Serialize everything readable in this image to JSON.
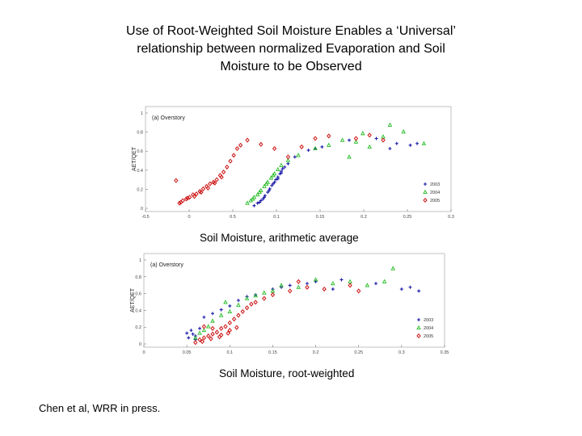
{
  "title_lines": [
    "Use of Root-Weighted Soil Moisture Enables a ‘Universal’",
    "relationship between normalized Evaporation and Soil",
    "Moisture to be Observed"
  ],
  "captions": {
    "top": "Soil Moisture, arithmetic average",
    "bottom": "Soil Moisture, root-weighted"
  },
  "credit": "Chen et al, WRR in press.",
  "colors": {
    "blue": "#1a1aa8",
    "green": "#22bb22",
    "red": "#cc1111"
  },
  "chart_data": [
    {
      "type": "scatter",
      "title": "(a) Overstory",
      "xlabel": "",
      "ylabel": "AET/QET",
      "xlim": [
        -0.05,
        0.4
      ],
      "ylim": [
        -0.05,
        1.2
      ],
      "x_ticks": [
        "-0.5",
        "0",
        "0.5",
        "0.1",
        "0.15",
        "0.2",
        "0.25",
        "0.3"
      ],
      "y_ticks": [
        "1",
        "0.8",
        "0.6",
        "0.4",
        "0.2",
        "0"
      ],
      "legend_position": "bottom-right",
      "legend": [
        "2003",
        "2004",
        "2005"
      ],
      "series": [
        {
          "name": "2003",
          "color": "blue",
          "marker": "plus",
          "points": [
            [
              0.11,
              0.02
            ],
            [
              0.115,
              0.05
            ],
            [
              0.12,
              0.08
            ],
            [
              0.123,
              0.1
            ],
            [
              0.126,
              0.14
            ],
            [
              0.13,
              0.18
            ],
            [
              0.133,
              0.22
            ],
            [
              0.136,
              0.26
            ],
            [
              0.14,
              0.3
            ],
            [
              0.142,
              0.33
            ],
            [
              0.145,
              0.36
            ],
            [
              0.148,
              0.4
            ],
            [
              0.15,
              0.43
            ],
            [
              0.152,
              0.46
            ],
            [
              0.155,
              0.48
            ],
            [
              0.118,
              0.06
            ],
            [
              0.125,
              0.12
            ],
            [
              0.132,
              0.2
            ],
            [
              0.138,
              0.28
            ],
            [
              0.145,
              0.34
            ],
            [
              0.15,
              0.41
            ],
            [
              0.16,
              0.52
            ],
            [
              0.17,
              0.6
            ],
            [
              0.19,
              0.68
            ],
            [
              0.21,
              0.72
            ],
            [
              0.25,
              0.8
            ],
            [
              0.29,
              0.82
            ],
            [
              0.32,
              0.76
            ],
            [
              0.34,
              0.74
            ],
            [
              0.35,
              0.76
            ],
            [
              0.31,
              0.7
            ],
            [
              0.2,
              0.7
            ]
          ]
        },
        {
          "name": "2004",
          "color": "green",
          "marker": "triangle",
          "points": [
            [
              0.1,
              0.05
            ],
            [
              0.105,
              0.08
            ],
            [
              0.11,
              0.12
            ],
            [
              0.115,
              0.15
            ],
            [
              0.12,
              0.2
            ],
            [
              0.125,
              0.25
            ],
            [
              0.13,
              0.3
            ],
            [
              0.135,
              0.35
            ],
            [
              0.14,
              0.4
            ],
            [
              0.145,
              0.45
            ],
            [
              0.108,
              0.1
            ],
            [
              0.118,
              0.18
            ],
            [
              0.128,
              0.28
            ],
            [
              0.138,
              0.38
            ],
            [
              0.15,
              0.5
            ],
            [
              0.16,
              0.56
            ],
            [
              0.175,
              0.62
            ],
            [
              0.2,
              0.7
            ],
            [
              0.22,
              0.74
            ],
            [
              0.24,
              0.8
            ],
            [
              0.26,
              0.78
            ],
            [
              0.28,
              0.72
            ],
            [
              0.3,
              0.84
            ],
            [
              0.31,
              0.98
            ],
            [
              0.33,
              0.9
            ],
            [
              0.36,
              0.76
            ],
            [
              0.25,
              0.6
            ],
            [
              0.27,
              0.88
            ]
          ]
        },
        {
          "name": "2005",
          "color": "red",
          "marker": "diamond",
          "points": [
            [
              0.0,
              0.05
            ],
            [
              0.005,
              0.08
            ],
            [
              0.01,
              0.1
            ],
            [
              0.015,
              0.12
            ],
            [
              0.02,
              0.15
            ],
            [
              0.025,
              0.16
            ],
            [
              0.03,
              0.19
            ],
            [
              0.035,
              0.22
            ],
            [
              0.04,
              0.25
            ],
            [
              0.045,
              0.28
            ],
            [
              0.05,
              0.3
            ],
            [
              0.055,
              0.33
            ],
            [
              0.06,
              0.38
            ],
            [
              0.065,
              0.42
            ],
            [
              0.07,
              0.48
            ],
            [
              0.075,
              0.55
            ],
            [
              0.08,
              0.62
            ],
            [
              0.085,
              0.7
            ],
            [
              0.09,
              0.74
            ],
            [
              0.1,
              0.8
            ],
            [
              -0.005,
              0.32
            ],
            [
              0.002,
              0.06
            ],
            [
              0.012,
              0.11
            ],
            [
              0.022,
              0.13
            ],
            [
              0.032,
              0.18
            ],
            [
              0.042,
              0.23
            ],
            [
              0.052,
              0.29
            ],
            [
              0.062,
              0.36
            ],
            [
              0.12,
              0.75
            ],
            [
              0.14,
              0.7
            ],
            [
              0.18,
              0.72
            ],
            [
              0.2,
              0.82
            ],
            [
              0.22,
              0.85
            ],
            [
              0.26,
              0.82
            ],
            [
              0.28,
              0.86
            ],
            [
              0.3,
              0.8
            ],
            [
              0.16,
              0.6
            ]
          ]
        }
      ]
    },
    {
      "type": "scatter",
      "title": "(a) Overstory",
      "xlabel": "",
      "ylabel": "AET/QET",
      "xlim": [
        0,
        0.35
      ],
      "ylim": [
        0,
        1.0
      ],
      "x_ticks": [
        "0",
        "0.05",
        "0.1",
        "0.15",
        "0.2",
        "0.25",
        "0.3",
        "0.35"
      ],
      "y_ticks": [
        "0",
        "0.2",
        "0.4",
        "0.6",
        "0.8",
        "1"
      ],
      "legend_position": "bottom-right",
      "legend": [
        "2003",
        "2004",
        "2005"
      ],
      "series": [
        {
          "name": "2003",
          "color": "blue",
          "marker": "plus",
          "points": [
            [
              0.05,
              0.15
            ],
            [
              0.052,
              0.1
            ],
            [
              0.055,
              0.18
            ],
            [
              0.06,
              0.12
            ],
            [
              0.065,
              0.2
            ],
            [
              0.07,
              0.32
            ],
            [
              0.08,
              0.36
            ],
            [
              0.09,
              0.4
            ],
            [
              0.1,
              0.44
            ],
            [
              0.11,
              0.5
            ],
            [
              0.13,
              0.56
            ],
            [
              0.15,
              0.62
            ],
            [
              0.17,
              0.66
            ],
            [
              0.19,
              0.68
            ],
            [
              0.22,
              0.62
            ],
            [
              0.27,
              0.68
            ],
            [
              0.3,
              0.62
            ],
            [
              0.32,
              0.6
            ],
            [
              0.31,
              0.64
            ],
            [
              0.2,
              0.7
            ],
            [
              0.23,
              0.72
            ],
            [
              0.06,
              0.08
            ],
            [
              0.057,
              0.14
            ],
            [
              0.12,
              0.54
            ],
            [
              0.16,
              0.64
            ]
          ]
        },
        {
          "name": "2004",
          "color": "green",
          "marker": "triangle",
          "points": [
            [
              0.06,
              0.1
            ],
            [
              0.065,
              0.15
            ],
            [
              0.07,
              0.18
            ],
            [
              0.075,
              0.22
            ],
            [
              0.08,
              0.28
            ],
            [
              0.09,
              0.34
            ],
            [
              0.1,
              0.38
            ],
            [
              0.11,
              0.45
            ],
            [
              0.12,
              0.52
            ],
            [
              0.13,
              0.55
            ],
            [
              0.15,
              0.6
            ],
            [
              0.16,
              0.66
            ],
            [
              0.18,
              0.64
            ],
            [
              0.2,
              0.72
            ],
            [
              0.24,
              0.7
            ],
            [
              0.26,
              0.66
            ],
            [
              0.28,
              0.7
            ],
            [
              0.29,
              0.84
            ],
            [
              0.095,
              0.48
            ],
            [
              0.14,
              0.58
            ],
            [
              0.22,
              0.68
            ]
          ]
        },
        {
          "name": "2005",
          "color": "red",
          "marker": "diamond",
          "points": [
            [
              0.06,
              0.05
            ],
            [
              0.065,
              0.08
            ],
            [
              0.07,
              0.1
            ],
            [
              0.075,
              0.12
            ],
            [
              0.08,
              0.14
            ],
            [
              0.085,
              0.16
            ],
            [
              0.09,
              0.2
            ],
            [
              0.095,
              0.22
            ],
            [
              0.1,
              0.26
            ],
            [
              0.105,
              0.3
            ],
            [
              0.11,
              0.34
            ],
            [
              0.115,
              0.38
            ],
            [
              0.12,
              0.42
            ],
            [
              0.125,
              0.46
            ],
            [
              0.13,
              0.48
            ],
            [
              0.14,
              0.52
            ],
            [
              0.15,
              0.56
            ],
            [
              0.17,
              0.6
            ],
            [
              0.19,
              0.64
            ],
            [
              0.21,
              0.62
            ],
            [
              0.24,
              0.66
            ],
            [
              0.25,
              0.6
            ],
            [
              0.07,
              0.22
            ],
            [
              0.08,
              0.2
            ],
            [
              0.09,
              0.13
            ],
            [
              0.1,
              0.18
            ],
            [
              0.068,
              0.06
            ],
            [
              0.078,
              0.09
            ],
            [
              0.088,
              0.11
            ],
            [
              0.098,
              0.15
            ],
            [
              0.108,
              0.21
            ],
            [
              0.18,
              0.7
            ]
          ]
        }
      ]
    }
  ]
}
